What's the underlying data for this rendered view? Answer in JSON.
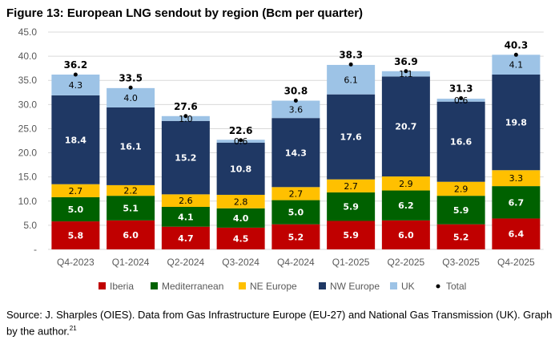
{
  "title": "Figure 13: European LNG sendout by region (Bcm per quarter)",
  "source": "Source: J. Sharples (OIES). Data from Gas Infrastructure Europe (EU-27) and National Gas Transmission (UK). Graph by the author.",
  "source_footnote": "21",
  "chart_data": {
    "type": "bar",
    "stacked": true,
    "categories": [
      "Q4-2023",
      "Q1-2024",
      "Q2-2024",
      "Q3-2024",
      "Q4-2024",
      "Q1-2025",
      "Q2-2025",
      "Q3-2025",
      "Q4-2025"
    ],
    "series": [
      {
        "name": "Iberia",
        "color": "#c00000",
        "label_color": "#ffffff",
        "values": [
          5.8,
          6.0,
          4.7,
          4.5,
          5.2,
          5.9,
          6.0,
          5.2,
          6.4
        ]
      },
      {
        "name": "Mediterranean",
        "color": "#006100",
        "label_color": "#ffffff",
        "values": [
          5.0,
          5.1,
          4.1,
          4.0,
          5.0,
          5.9,
          6.2,
          5.9,
          6.7
        ]
      },
      {
        "name": "NE Europe",
        "color": "#ffc000",
        "label_color": "#000000",
        "values": [
          2.7,
          2.2,
          2.6,
          2.8,
          2.7,
          2.7,
          2.9,
          2.9,
          3.3
        ]
      },
      {
        "name": "NW Europe",
        "color": "#1f3864",
        "label_color": "#ffffff",
        "values": [
          18.4,
          16.1,
          15.2,
          10.8,
          14.3,
          17.6,
          20.7,
          16.6,
          19.8
        ]
      },
      {
        "name": "UK",
        "color": "#9dc3e6",
        "label_color": "#000000",
        "values": [
          4.3,
          4.0,
          1.0,
          0.6,
          3.6,
          6.1,
          1.1,
          0.6,
          4.1
        ]
      }
    ],
    "total": {
      "name": "Total",
      "marker": "dot",
      "color": "#000000",
      "values": [
        36.2,
        33.5,
        27.6,
        22.6,
        30.8,
        38.3,
        36.9,
        31.3,
        40.3
      ]
    },
    "yticks": [
      "-",
      "5.0",
      "10.0",
      "15.0",
      "20.0",
      "25.0",
      "30.0",
      "35.0",
      "40.0",
      "45.0"
    ],
    "ylim": [
      0,
      45
    ],
    "grid": true,
    "legend": "bottom"
  }
}
